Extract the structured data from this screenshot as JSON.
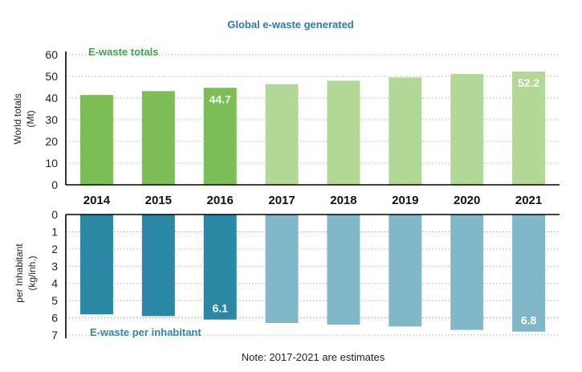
{
  "chart_data": {
    "title": "Global e-waste generated",
    "type": "bar",
    "categories": [
      "2014",
      "2015",
      "2016",
      "2017",
      "2018",
      "2019",
      "2020",
      "2021"
    ],
    "estimate_from_index": 3,
    "note": "Note: 2017-2021 are estimates",
    "top": {
      "series_name": "E-waste totals",
      "ylabel_line1": "World totals",
      "ylabel_line2": "(Mt)",
      "ylim": [
        0,
        60
      ],
      "ticks": [
        0,
        10,
        20,
        30,
        40,
        50,
        60
      ],
      "values": [
        41.4,
        43.2,
        44.7,
        46.4,
        48.0,
        49.5,
        51.1,
        52.2
      ],
      "data_labels": {
        "2": "44.7",
        "7": "52.2"
      },
      "colors": {
        "actual": "#7dbd55",
        "estimate": "#b2d898"
      }
    },
    "bottom": {
      "series_name": "E-waste per inhabitant",
      "ylabel_line1": "per Inhabitant",
      "ylabel_line2": "(kg/inh.)",
      "ylim": [
        0,
        7
      ],
      "inverted": true,
      "ticks": [
        0,
        1,
        2,
        3,
        4,
        5,
        6,
        7
      ],
      "values": [
        5.8,
        5.9,
        6.1,
        6.3,
        6.4,
        6.5,
        6.7,
        6.8
      ],
      "data_labels": {
        "2": "6.1",
        "7": "6.8"
      },
      "colors": {
        "actual": "#2b88a4",
        "estimate": "#80b8c9"
      }
    }
  }
}
